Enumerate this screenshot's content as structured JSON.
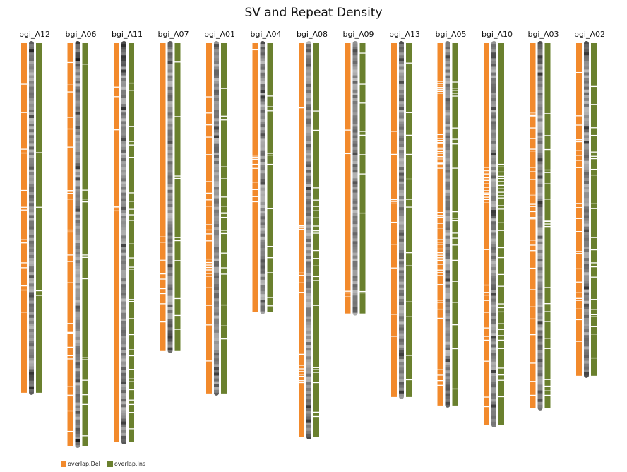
{
  "chart_data": {
    "type": "ideogram",
    "title": "SV and Repeat Density",
    "legend_placement": "bottom-left",
    "colors": {
      "del": "#f28a2c",
      "ins": "#6a802e",
      "gap": "#ffffff",
      "repeat_low": "#d6d6d6",
      "repeat_high": "#1a1a1a"
    },
    "series": [
      {
        "name": "overlap.Del",
        "color": "#f28a2c"
      },
      {
        "name": "overlap.Ins",
        "color": "#6a802e"
      }
    ],
    "length_unit": "relative",
    "chromosomes": [
      {
        "name": "bgi_A12",
        "length": 49.4,
        "seed": 11,
        "del_gaps": [
          0.116,
          0.197,
          0.302,
          0.313,
          0.42,
          0.468,
          0.476,
          0.561,
          0.57,
          0.627,
          0.641,
          0.693,
          0.705,
          0.768
        ],
        "ins_gaps": [
          0.312,
          0.468,
          0.707,
          0.72
        ]
      },
      {
        "name": "bgi_A06",
        "length": 56.9,
        "seed": 23,
        "del_gaps": [
          0.047,
          0.103,
          0.12,
          0.183,
          0.212,
          0.257,
          0.365,
          0.367,
          0.372,
          0.386,
          0.463,
          0.468,
          0.525,
          0.541,
          0.594,
          0.695,
          0.717,
          0.719,
          0.754,
          0.775,
          0.783,
          0.852,
          0.873,
          0.875,
          0.912,
          0.963
        ],
        "ins_gaps": [
          0.051,
          0.364,
          0.386,
          0.393,
          0.525,
          0.531,
          0.584,
          0.78,
          0.785,
          0.836,
          0.872,
          0.896,
          0.974
        ]
      },
      {
        "name": "bgi_A11",
        "length": 56.4,
        "seed": 37,
        "del_gaps": [
          0.109,
          0.133,
          0.216,
          0.409,
          0.412,
          0.419
        ],
        "ins_gaps": [
          0.099,
          0.117,
          0.208,
          0.245,
          0.254,
          0.285,
          0.374,
          0.395,
          0.415,
          0.429,
          0.443,
          0.502,
          0.537,
          0.565,
          0.56,
          0.641,
          0.646,
          0.689,
          0.729,
          0.767,
          0.782,
          0.816,
          0.84,
          0.847,
          0.867,
          0.893,
          0.904,
          0.924,
          0.965
        ]
      },
      {
        "name": "bgi_A07",
        "length": 43.5,
        "seed": 41,
        "del_gaps": [
          0.628,
          0.645,
          0.7,
          0.705,
          0.748,
          0.765,
          0.795,
          0.796,
          0.812,
          0.845,
          0.904
        ],
        "ins_gaps": [
          0.06,
          0.237,
          0.43,
          0.438,
          0.63,
          0.64,
          0.705,
          0.828,
          0.883,
          0.928
        ]
      },
      {
        "name": "bgi_A01",
        "length": 49.5,
        "seed": 53,
        "del_gaps": [
          0.152,
          0.198,
          0.232,
          0.267,
          0.317,
          0.394,
          0.427,
          0.446,
          0.464,
          0.517,
          0.532,
          0.543,
          0.563,
          0.615,
          0.625,
          0.632,
          0.639,
          0.646,
          0.656,
          0.664,
          0.697,
          0.747,
          0.803,
          0.906
        ],
        "ins_gaps": [
          0.128,
          0.207,
          0.218,
          0.352,
          0.386,
          0.438,
          0.464,
          0.483,
          0.485,
          0.496,
          0.533,
          0.542,
          0.598,
          0.64,
          0.658,
          0.746,
          0.806,
          0.843
        ]
      },
      {
        "name": "bgi_A04",
        "length": 38.0,
        "seed": 67,
        "del_gaps": [
          0.023,
          0.415,
          0.422,
          0.43,
          0.449,
          0.464,
          0.515,
          0.543,
          0.569,
          0.588
        ],
        "ins_gaps": [
          0.195,
          0.235,
          0.25,
          0.408,
          0.415,
          0.449,
          0.614,
          0.754,
          0.796,
          0.852,
          0.944,
          0.975
        ]
      },
      {
        "name": "bgi_A08",
        "length": 55.7,
        "seed": 71,
        "del_gaps": [
          0.163,
          0.462,
          0.465,
          0.471,
          0.582,
          0.588,
          0.607,
          0.631,
          0.788,
          0.816,
          0.825,
          0.832,
          0.839,
          0.844,
          0.855,
          0.86
        ],
        "ins_gaps": [
          0.171,
          0.22,
          0.366,
          0.397,
          0.413,
          0.424,
          0.442,
          0.463,
          0.475,
          0.481,
          0.525,
          0.545,
          0.564,
          0.591,
          0.601,
          0.664,
          0.822,
          0.827,
          0.834,
          0.86,
          0.935,
          0.946
        ]
      },
      {
        "name": "bgi_A09",
        "length": 38.2,
        "seed": 83,
        "del_gaps": [
          0.32,
          0.407,
          0.916,
          0.922,
          0.937
        ],
        "ins_gaps": [
          0.035,
          0.15,
          0.22,
          0.325,
          0.339,
          0.411,
          0.482,
          0.627,
          0.917,
          0.922
        ]
      },
      {
        "name": "bgi_A13",
        "length": 50.0,
        "seed": 97,
        "del_gaps": [
          0.248,
          0.313,
          0.441,
          0.446,
          0.451,
          0.505,
          0.567,
          0.634,
          0.765,
          0.827
        ],
        "ins_gaps": [
          0.055,
          0.195,
          0.259,
          0.313,
          0.383,
          0.44,
          0.462,
          0.591,
          0.628,
          0.73,
          0.772,
          0.881,
          0.95
        ]
      },
      {
        "name": "bgi_A05",
        "length": 51.2,
        "seed": 101,
        "del_gaps": [
          0.104,
          0.11,
          0.115,
          0.121,
          0.126,
          0.132,
          0.137,
          0.251,
          0.262,
          0.267,
          0.268,
          0.273,
          0.276,
          0.288,
          0.291,
          0.298,
          0.303,
          0.312,
          0.316,
          0.321,
          0.328,
          0.33,
          0.332,
          0.344,
          0.466,
          0.474,
          0.479,
          0.496,
          0.509,
          0.541,
          0.548,
          0.554,
          0.567,
          0.577,
          0.584,
          0.591,
          0.598,
          0.609,
          0.625,
          0.632,
          0.64,
          0.665,
          0.708,
          0.714,
          0.733,
          0.758,
          0.9,
          0.915,
          0.93,
          0.943
        ],
        "ins_gaps": [
          0.106,
          0.123,
          0.129,
          0.137,
          0.145,
          0.233,
          0.264,
          0.277,
          0.344,
          0.464,
          0.482,
          0.489,
          0.523,
          0.537,
          0.556,
          0.598,
          0.656,
          0.714,
          0.776,
          0.842,
          0.953
        ]
      },
      {
        "name": "bgi_A10",
        "length": 54.0,
        "seed": 113,
        "del_gaps": [
          0.324,
          0.332,
          0.336,
          0.341,
          0.351,
          0.358,
          0.367,
          0.376,
          0.385,
          0.391,
          0.395,
          0.402,
          0.408,
          0.417,
          0.539,
          0.632,
          0.651,
          0.658,
          0.672,
          0.703,
          0.744,
          0.766,
          0.776,
          0.831,
          0.925,
          0.95
        ],
        "ins_gaps": [
          0.316,
          0.323,
          0.336,
          0.347,
          0.353,
          0.361,
          0.371,
          0.38,
          0.389,
          0.398,
          0.404,
          0.424,
          0.433,
          0.469,
          0.489,
          0.534,
          0.56,
          0.604,
          0.635,
          0.681,
          0.691,
          0.702,
          0.733,
          0.748,
          0.764,
          0.776,
          0.798,
          0.849,
          0.867,
          0.881,
          0.924
        ]
      },
      {
        "name": "bgi_A03",
        "length": 51.6,
        "seed": 127,
        "del_gaps": [
          0.188,
          0.193,
          0.197,
          0.2,
          0.231,
          0.26,
          0.289,
          0.294,
          0.339,
          0.351,
          0.372,
          0.412,
          0.417,
          0.44,
          0.446,
          0.46,
          0.476,
          0.48,
          0.538,
          0.552,
          0.567,
          0.615,
          0.674,
          0.721,
          0.754,
          0.797,
          0.875,
          0.925,
          0.963
        ],
        "ins_gaps": [
          0.192,
          0.252,
          0.29,
          0.346,
          0.353,
          0.384,
          0.426,
          0.484,
          0.487,
          0.494,
          0.501,
          0.668,
          0.712,
          0.734,
          0.761,
          0.807,
          0.835,
          0.92,
          0.938,
          0.951,
          0.963
        ]
      },
      {
        "name": "bgi_A02",
        "length": 47.0,
        "seed": 131,
        "del_gaps": [
          0.087,
          0.217,
          0.245,
          0.289,
          0.295,
          0.322,
          0.336,
          0.351,
          0.373,
          0.481,
          0.493,
          0.526,
          0.565,
          0.625,
          0.631,
          0.677,
          0.717,
          0.749,
          0.766,
          0.772,
          0.798,
          0.83,
          0.895
        ],
        "ins_gaps": [
          0.129,
          0.183,
          0.253,
          0.276,
          0.326,
          0.339,
          0.346,
          0.378,
          0.395,
          0.48,
          0.496,
          0.583,
          0.62,
          0.659,
          0.671,
          0.702,
          0.769,
          0.799,
          0.815,
          0.821,
          0.851,
          0.873,
          0.945
        ]
      }
    ]
  }
}
